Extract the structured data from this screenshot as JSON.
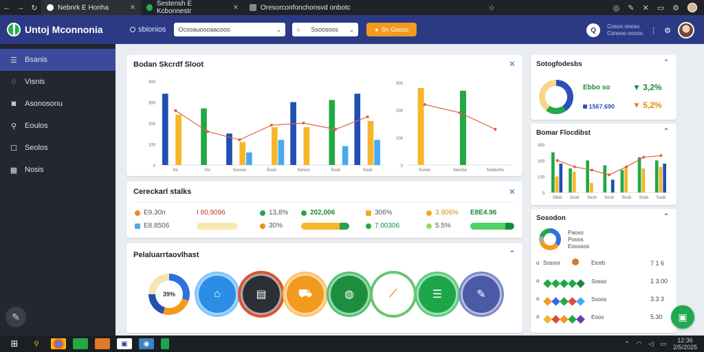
{
  "browser": {
    "tabs": [
      {
        "title": "Nebnrk E Honha",
        "color": "#4b7bec"
      },
      {
        "title": "Sestensh E Kcbonnestr",
        "color": "#22b04b"
      },
      {
        "title": "Oresorconfonchonsvd onbotc",
        "color": "#888888"
      }
    ]
  },
  "header": {
    "app_title": "Untoj Mconnonia",
    "label": "sbionios",
    "select1": "Ocsoauoooaacooo",
    "select2": "Ssoosoos",
    "orange_button": "Sn Gsoco",
    "right_text1": "Cosoo oooso",
    "right_text2": "Csnooo ooooo"
  },
  "sidebar": {
    "items": [
      {
        "label": "Bsanis",
        "icon": "list-icon"
      },
      {
        "label": "Visnis",
        "icon": "lightbulb-icon"
      },
      {
        "label": "Asonosonu",
        "icon": "camera-icon"
      },
      {
        "label": "Eoulos",
        "icon": "wrench-icon"
      },
      {
        "label": "Seolos",
        "icon": "square-icon"
      },
      {
        "label": "Nosis",
        "icon": "calculator-icon"
      }
    ]
  },
  "main_chart": {
    "title": "Bodan Skcrdf Sloot",
    "left": {
      "y_ticks": [
        "0",
        "100",
        "200",
        "300",
        "400"
      ],
      "categories": [
        "So",
        "Do",
        "Sossos",
        "Eosb",
        "Sonsrs",
        "Sosb",
        "Sosb"
      ],
      "series": [
        {
          "color": "#1f4fb4",
          "values": [
            340,
            0,
            150,
            0,
            300,
            0,
            340
          ]
        },
        {
          "color": "#22a845",
          "values": [
            0,
            270,
            0,
            0,
            0,
            310,
            0
          ]
        },
        {
          "color": "#f6b62a",
          "values": [
            240,
            0,
            110,
            180,
            180,
            0,
            210
          ]
        },
        {
          "color": "#4aa8ef",
          "values": [
            0,
            0,
            60,
            120,
            0,
            90,
            120
          ]
        }
      ],
      "line": [
        260,
        160,
        120,
        190,
        200,
        170,
        230
      ]
    },
    "right": {
      "y_ticks": [
        "0",
        "100",
        "200",
        "300"
      ],
      "categories": [
        "Sonos",
        "Seosbo",
        "Sosborhs"
      ],
      "series": [
        {
          "color": "#1f4fb4",
          "values": [
            0,
            0,
            0
          ]
        },
        {
          "color": "#f6b62a",
          "values": [
            280,
            0,
            0
          ]
        },
        {
          "color": "#22a845",
          "values": [
            0,
            270,
            0
          ]
        },
        {
          "color": "#4aa8ef",
          "values": [
            0,
            0,
            0
          ]
        }
      ],
      "line": [
        220,
        190,
        130
      ]
    }
  },
  "metrics_card": {
    "title": "Cereckarl stalks",
    "items": [
      {
        "label": "E9.30n",
        "color": "#f08a1e"
      },
      {
        "label": "I 80,9096",
        "color": "#c0392b"
      },
      {
        "label": "13,8%",
        "color": "#22a845"
      },
      {
        "label": "202,006",
        "color": "#22a845"
      },
      {
        "label": "306%",
        "color": "#f6a623"
      },
      {
        "label": "3.906%",
        "color": "#f6a623"
      },
      {
        "label": "E8E4.96",
        "color": "#22a845"
      },
      {
        "label": "E8.8506",
        "color": "#4aa8ef"
      },
      {
        "label": "30%",
        "color": "#f08a1e"
      },
      {
        "label": "7.00306",
        "color": "#22a845"
      },
      {
        "label": "5.5%",
        "color": "#9bd46b"
      }
    ]
  },
  "icons_card": {
    "title": "Pelaluarrtaovlhast",
    "center_value": "39%"
  },
  "right_top": {
    "title": "Sotogfodesbs",
    "value1": "Ebbo so",
    "value2": "1567.690",
    "pct1": "3,2%",
    "pct2": "5,2%"
  },
  "right_mid": {
    "title": "Bomar Flocdibst",
    "y_ticks": [
      "0",
      "100",
      "200",
      "300"
    ],
    "categories": [
      "Sbsb",
      "Sosb",
      "Sesb",
      "Sosb",
      "Snsb",
      "Sosb",
      "Sosb"
    ]
  },
  "right_bottom": {
    "title": "Sosodon",
    "donut_labels": [
      "Paoso",
      "Pooos",
      "Eooosos"
    ],
    "rows": [
      {
        "label": "Sossor",
        "sub": "Eiceb",
        "value": "7 1 6"
      },
      {
        "label": "Sosso",
        "sub": "Ebosc",
        "value": "1 3.00"
      },
      {
        "label": "Ssoos",
        "sub": "Ebceo",
        "value": "3.3 3"
      },
      {
        "label": "Eoos",
        "sub": "Ebcbo",
        "value": "5.30"
      }
    ]
  },
  "taskbar": {
    "time": "12:36",
    "date": "2/5/2025"
  }
}
